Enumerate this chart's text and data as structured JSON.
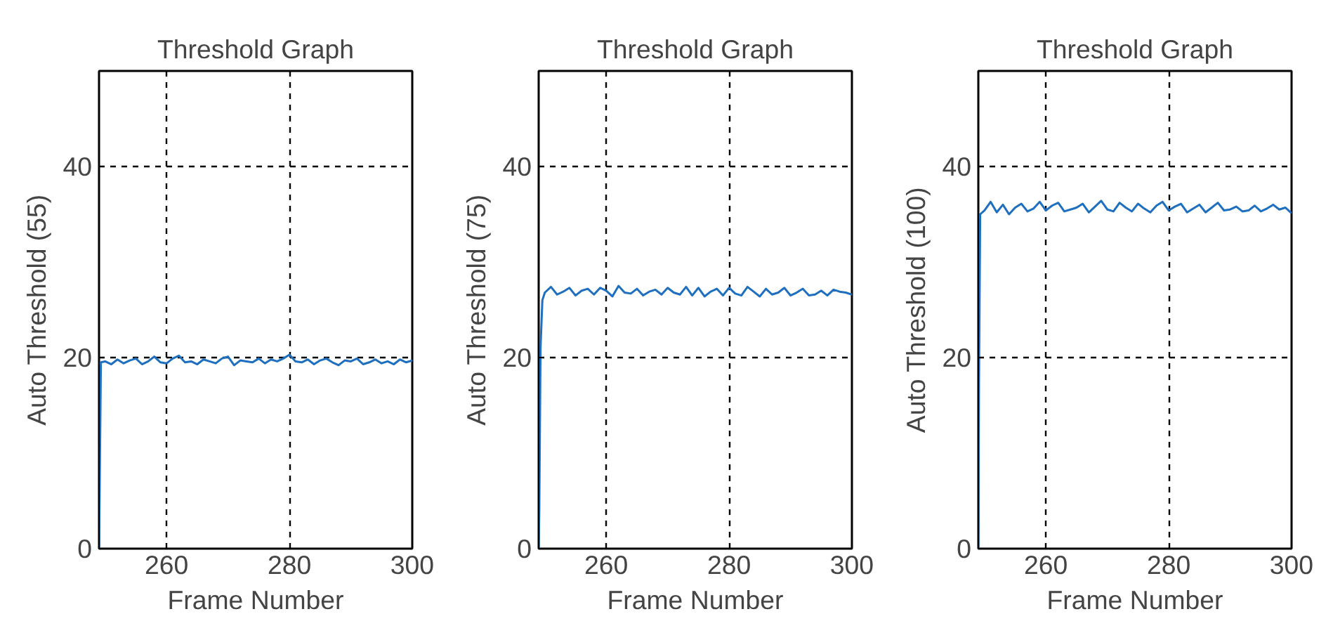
{
  "chart_data": [
    {
      "type": "line",
      "title": "Threshold Graph",
      "xlabel": "Frame Number",
      "ylabel": "Auto Threshold (55)",
      "xlim": [
        249,
        300
      ],
      "ylim": [
        0,
        50
      ],
      "xticks": [
        260,
        280,
        300
      ],
      "yticks": [
        0,
        20,
        40
      ],
      "grid": true,
      "line_style": "solid",
      "series": [
        {
          "color": "#1f6fc0",
          "x": [
            249,
            249.1,
            249.3,
            250,
            251,
            252,
            253,
            254,
            255,
            256,
            257,
            258,
            259,
            260,
            261,
            262,
            263,
            264,
            265,
            266,
            267,
            268,
            269,
            270,
            271,
            272,
            273,
            274,
            275,
            276,
            277,
            278,
            279,
            280,
            281,
            282,
            283,
            284,
            285,
            286,
            287,
            288,
            289,
            290,
            291,
            292,
            293,
            294,
            295,
            296,
            297,
            298,
            299,
            300
          ],
          "values": [
            0,
            6,
            19.5,
            19.6,
            19.3,
            19.8,
            19.4,
            19.7,
            19.9,
            19.3,
            19.6,
            20.1,
            19.5,
            19.4,
            19.9,
            20.2,
            19.5,
            19.6,
            19.3,
            19.8,
            19.6,
            19.4,
            19.9,
            20.1,
            19.2,
            19.7,
            19.6,
            19.5,
            19.9,
            19.4,
            19.8,
            19.6,
            19.9,
            20.3,
            19.6,
            19.5,
            19.8,
            19.3,
            19.7,
            19.9,
            19.5,
            19.2,
            19.7,
            19.6,
            19.9,
            19.3,
            19.5,
            19.8,
            19.4,
            19.6,
            19.3,
            19.8,
            19.5,
            19.7
          ]
        }
      ]
    },
    {
      "type": "line",
      "title": "Threshold Graph",
      "xlabel": "Frame Number",
      "ylabel": "Auto Threshold (75)",
      "xlim": [
        249,
        300
      ],
      "ylim": [
        0,
        50
      ],
      "xticks": [
        260,
        280,
        300
      ],
      "yticks": [
        0,
        20,
        40
      ],
      "grid": true,
      "line_style": "solid",
      "series": [
        {
          "color": "#1f6fc0",
          "x": [
            249,
            249.1,
            249.3,
            249.6,
            250,
            251,
            252,
            253,
            254,
            255,
            256,
            257,
            258,
            259,
            260,
            261,
            262,
            263,
            264,
            265,
            266,
            267,
            268,
            269,
            270,
            271,
            272,
            273,
            274,
            275,
            276,
            277,
            278,
            279,
            280,
            281,
            282,
            283,
            284,
            285,
            286,
            287,
            288,
            289,
            290,
            291,
            292,
            293,
            294,
            295,
            296,
            297,
            298,
            299,
            300
          ],
          "values": [
            0,
            4,
            21,
            26,
            26.8,
            27.4,
            26.6,
            26.9,
            27.3,
            26.5,
            27.0,
            27.2,
            26.6,
            27.3,
            27.0,
            26.4,
            27.5,
            26.8,
            26.7,
            27.2,
            26.5,
            26.9,
            27.1,
            26.6,
            27.3,
            26.8,
            26.6,
            27.4,
            26.5,
            27.3,
            26.4,
            26.9,
            27.2,
            26.5,
            27.3,
            26.7,
            26.5,
            27.4,
            26.9,
            26.4,
            27.2,
            26.6,
            26.8,
            27.3,
            26.5,
            26.8,
            27.2,
            26.5,
            26.6,
            27.0,
            26.5,
            27.1,
            26.9,
            26.8,
            26.6
          ]
        }
      ]
    },
    {
      "type": "line",
      "title": "Threshold Graph",
      "xlabel": "Frame Number",
      "ylabel": "Auto Threshold (100)",
      "xlim": [
        249,
        300
      ],
      "ylim": [
        0,
        50
      ],
      "xticks": [
        260,
        280,
        300
      ],
      "yticks": [
        0,
        20,
        40
      ],
      "grid": true,
      "line_style": "solid",
      "series": [
        {
          "color": "#1f6fc0",
          "x": [
            249,
            249.1,
            249.3,
            250,
            251,
            252,
            253,
            254,
            255,
            256,
            257,
            258,
            259,
            260,
            261,
            262,
            263,
            264,
            265,
            266,
            267,
            268,
            269,
            270,
            271,
            272,
            273,
            274,
            275,
            276,
            277,
            278,
            279,
            280,
            281,
            282,
            283,
            284,
            285,
            286,
            287,
            288,
            289,
            290,
            291,
            292,
            293,
            294,
            295,
            296,
            297,
            298,
            299,
            300
          ],
          "values": [
            0,
            17,
            35,
            35.4,
            36.3,
            35.2,
            36.0,
            35.0,
            35.7,
            36.1,
            35.3,
            35.6,
            36.3,
            35.4,
            35.9,
            36.2,
            35.3,
            35.5,
            35.7,
            36.1,
            35.2,
            35.8,
            36.4,
            35.5,
            35.3,
            36.2,
            35.7,
            35.3,
            36.1,
            35.6,
            35.2,
            35.9,
            36.3,
            35.4,
            35.8,
            36.1,
            35.2,
            35.6,
            36.0,
            35.2,
            35.7,
            36.2,
            35.4,
            35.5,
            35.8,
            35.3,
            35.4,
            35.9,
            35.3,
            35.6,
            36.0,
            35.5,
            35.7,
            35.1
          ]
        }
      ]
    }
  ]
}
